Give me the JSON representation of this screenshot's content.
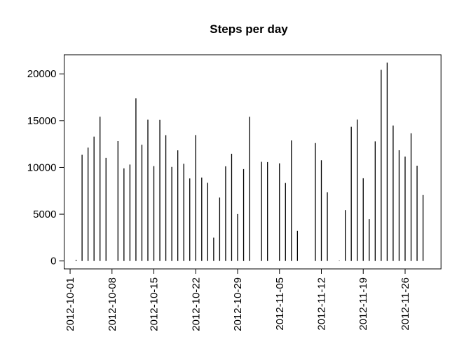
{
  "chart_data": {
    "type": "histogram-lines",
    "title": "Steps per day",
    "x": [
      "2012-10-01",
      "2012-10-02",
      "2012-10-03",
      "2012-10-04",
      "2012-10-05",
      "2012-10-06",
      "2012-10-07",
      "2012-10-08",
      "2012-10-09",
      "2012-10-10",
      "2012-10-11",
      "2012-10-12",
      "2012-10-13",
      "2012-10-14",
      "2012-10-15",
      "2012-10-16",
      "2012-10-17",
      "2012-10-18",
      "2012-10-19",
      "2012-10-20",
      "2012-10-21",
      "2012-10-22",
      "2012-10-23",
      "2012-10-24",
      "2012-10-25",
      "2012-10-26",
      "2012-10-27",
      "2012-10-28",
      "2012-10-29",
      "2012-10-30",
      "2012-10-31",
      "2012-11-01",
      "2012-11-02",
      "2012-11-03",
      "2012-11-04",
      "2012-11-05",
      "2012-11-06",
      "2012-11-07",
      "2012-11-08",
      "2012-11-09",
      "2012-11-10",
      "2012-11-11",
      "2012-11-12",
      "2012-11-13",
      "2012-11-14",
      "2012-11-15",
      "2012-11-16",
      "2012-11-17",
      "2012-11-18",
      "2012-11-19",
      "2012-11-20",
      "2012-11-21",
      "2012-11-22",
      "2012-11-23",
      "2012-11-24",
      "2012-11-25",
      "2012-11-26",
      "2012-11-27",
      "2012-11-28",
      "2012-11-29",
      "2012-11-30"
    ],
    "values": [
      0,
      126,
      11352,
      12116,
      13294,
      15420,
      11015,
      0,
      12811,
      9900,
      10304,
      17382,
      12426,
      15098,
      10139,
      15084,
      13452,
      10056,
      11829,
      10395,
      8821,
      13460,
      8918,
      8355,
      2492,
      6778,
      10119,
      11458,
      5018,
      9819,
      15414,
      0,
      10600,
      10571,
      0,
      10439,
      8334,
      12883,
      3219,
      0,
      0,
      12608,
      10765,
      7336,
      0,
      41,
      5441,
      14339,
      15110,
      8841,
      4472,
      12787,
      20427,
      21194,
      14478,
      11834,
      11162,
      13646,
      10183,
      7047,
      0
    ],
    "color": "#000000",
    "xlim": [
      "2012-09-30",
      "2012-12-02"
    ],
    "xticks": [
      "2012-10-01",
      "2012-10-08",
      "2012-10-15",
      "2012-10-22",
      "2012-10-29",
      "2012-11-05",
      "2012-11-12",
      "2012-11-19",
      "2012-11-26"
    ],
    "ylim": [
      -848,
      22042
    ],
    "yticks": [
      0,
      5000,
      10000,
      15000,
      20000
    ]
  }
}
